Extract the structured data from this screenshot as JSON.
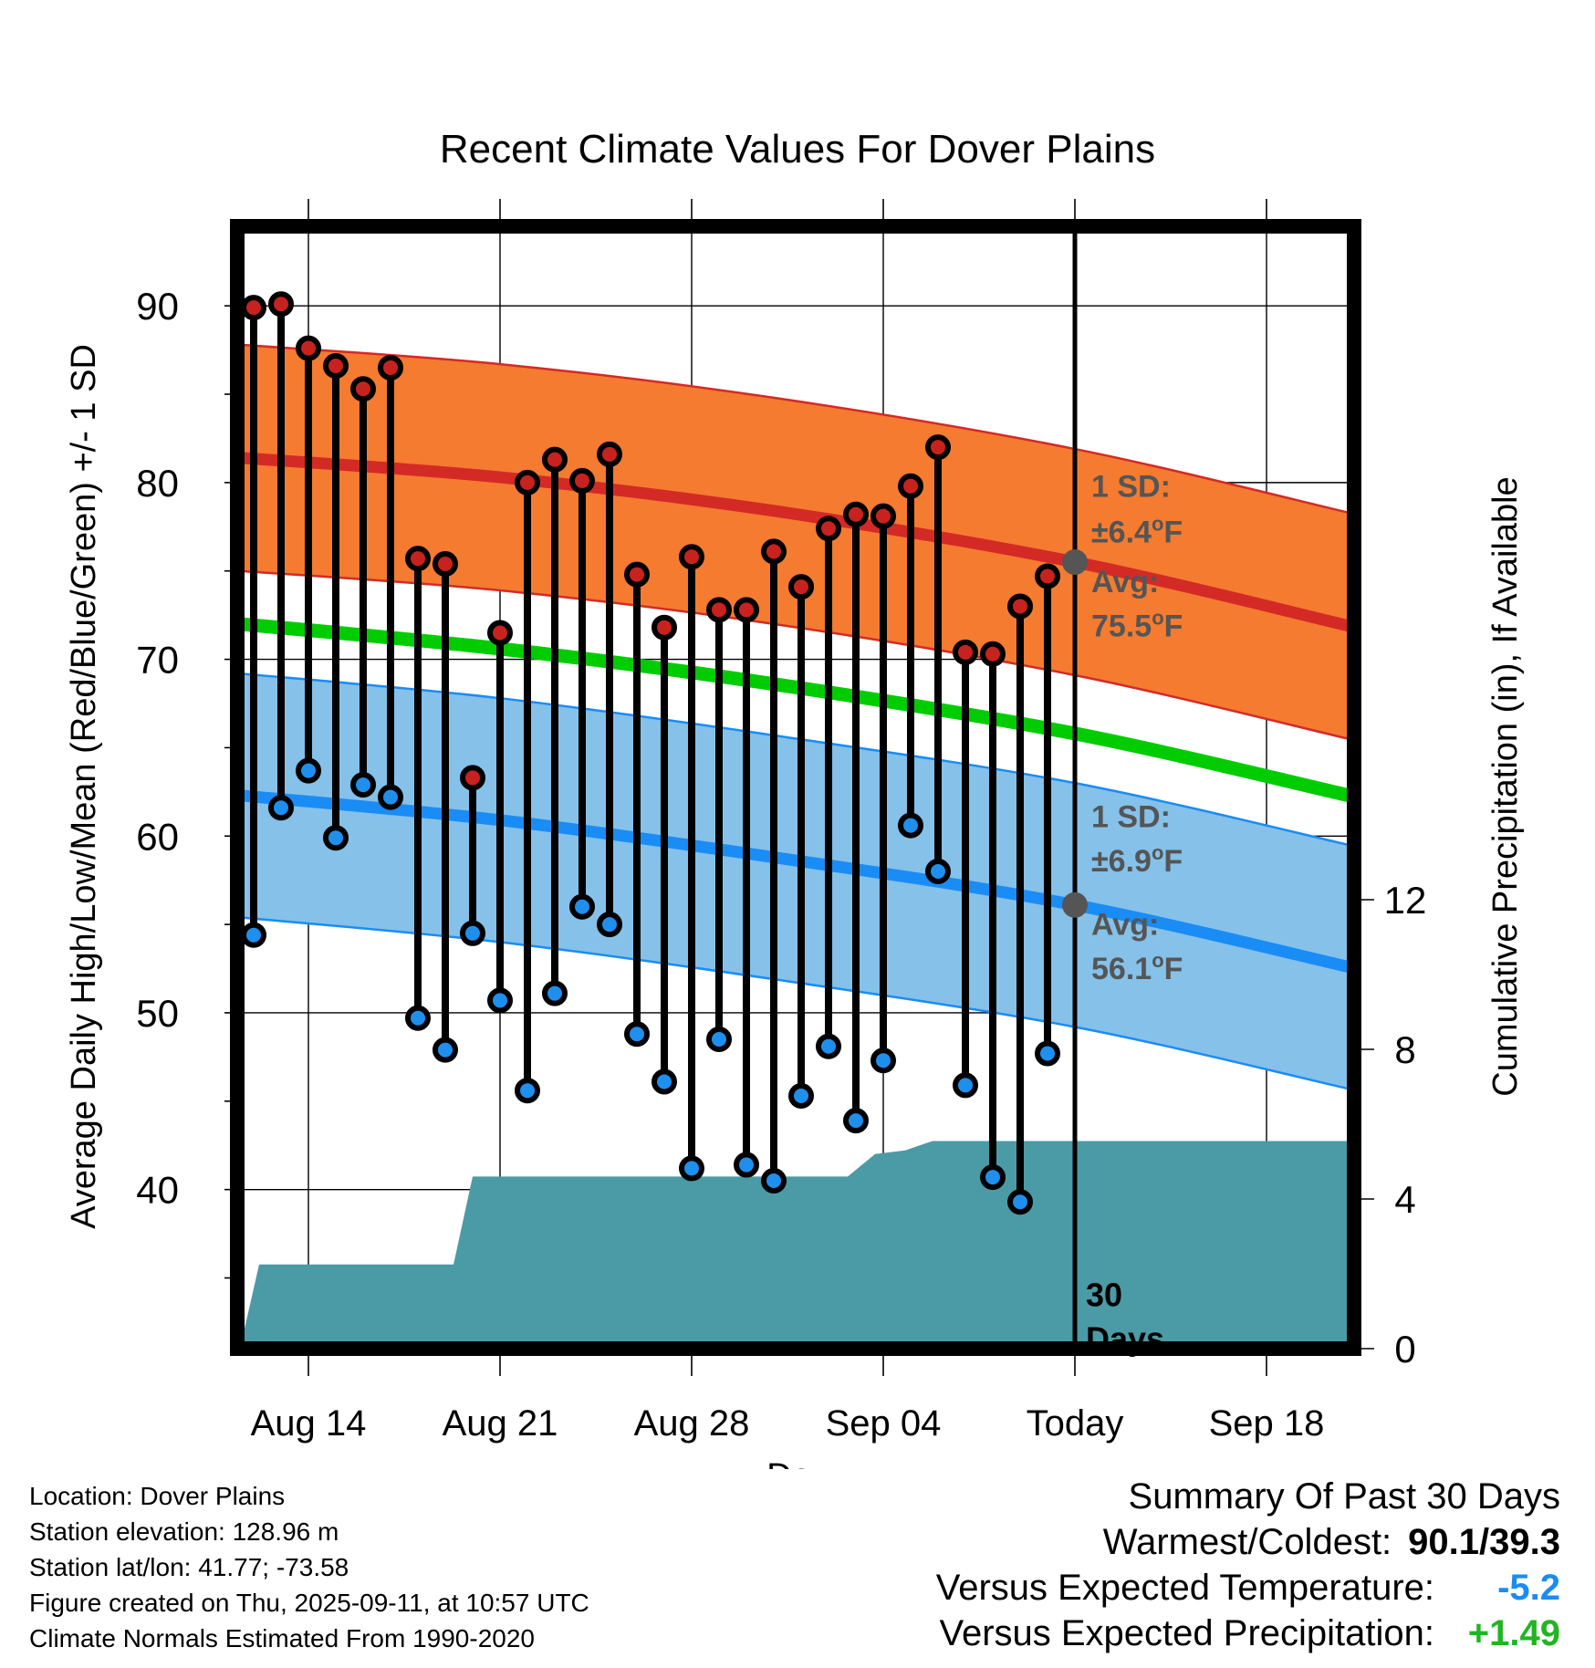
{
  "chart_data": {
    "type": "line",
    "title": "Recent Climate Values For Dover Plains",
    "xlabel": "Day",
    "ylabel": "Average Daily High/Low/Mean (Red/Blue/Green) +/- 1 SD",
    "y2label": "Cumulative Precipitation (in), If Available",
    "x_start": "Aug 11",
    "today": "Sep 11",
    "x_ticks": [
      {
        "day": 3,
        "label": "Aug 14"
      },
      {
        "day": 10,
        "label": "Aug 21"
      },
      {
        "day": 17,
        "label": "Aug 28"
      },
      {
        "day": 24,
        "label": "Sep 04"
      },
      {
        "day": 31,
        "label": "Today"
      },
      {
        "day": 38,
        "label": "Sep 18"
      }
    ],
    "xlim": [
      0.4,
      41.2
    ],
    "ylim": [
      31,
      94.5
    ],
    "y_ticks": [
      40,
      50,
      60,
      70,
      80,
      90
    ],
    "y2lim": [
      0,
      30
    ],
    "y2_ticks": [
      0,
      4,
      8,
      12
    ],
    "grid": true,
    "daily": [
      {
        "day": 1,
        "high": 89.9,
        "low": 54.4
      },
      {
        "day": 2,
        "high": 90.1,
        "low": 61.6
      },
      {
        "day": 3,
        "high": 87.6,
        "low": 63.7
      },
      {
        "day": 4,
        "high": 86.6,
        "low": 59.9
      },
      {
        "day": 5,
        "high": 85.3,
        "low": 62.9
      },
      {
        "day": 6,
        "high": 86.5,
        "low": 62.2
      },
      {
        "day": 7,
        "high": 75.7,
        "low": 49.7
      },
      {
        "day": 8,
        "high": 75.4,
        "low": 47.9
      },
      {
        "day": 9,
        "high": 63.3,
        "low": 54.5
      },
      {
        "day": 10,
        "high": 71.5,
        "low": 50.7
      },
      {
        "day": 11,
        "high": 80.0,
        "low": 45.6
      },
      {
        "day": 12,
        "high": 81.3,
        "low": 51.1
      },
      {
        "day": 13,
        "high": 80.1,
        "low": 56.0
      },
      {
        "day": 14,
        "high": 81.6,
        "low": 55.0
      },
      {
        "day": 15,
        "high": 74.8,
        "low": 48.8
      },
      {
        "day": 16,
        "high": 71.8,
        "low": 46.1
      },
      {
        "day": 17,
        "high": 75.8,
        "low": 41.2
      },
      {
        "day": 18,
        "high": 72.8,
        "low": 48.5
      },
      {
        "day": 19,
        "high": 72.8,
        "low": 41.4
      },
      {
        "day": 20,
        "high": 76.1,
        "low": 40.5
      },
      {
        "day": 21,
        "high": 74.1,
        "low": 45.3
      },
      {
        "day": 22,
        "high": 77.4,
        "low": 48.1
      },
      {
        "day": 23,
        "high": 78.2,
        "low": 43.9
      },
      {
        "day": 24,
        "high": 78.1,
        "low": 47.3
      },
      {
        "day": 25,
        "high": 79.8,
        "low": 60.6
      },
      {
        "day": 26,
        "high": 82.0,
        "low": 58.0
      },
      {
        "day": 27,
        "high": 70.4,
        "low": 45.9
      },
      {
        "day": 28,
        "high": 70.3,
        "low": 40.7
      },
      {
        "day": 29,
        "high": 73.0,
        "low": 39.3
      },
      {
        "day": 30,
        "high": 74.7,
        "low": 47.7
      }
    ],
    "normals": {
      "days": [
        0.5,
        10,
        20,
        31,
        41
      ],
      "avg_high": [
        81.4,
        80.3,
        78.4,
        75.5,
        71.9
      ],
      "avg_low": [
        62.3,
        60.9,
        58.8,
        56.1,
        52.6
      ],
      "avg_mean": [
        72.0,
        70.6,
        68.6,
        65.8,
        62.3
      ],
      "high_sd": 6.4,
      "low_sd": 6.9
    },
    "precip_cumulative": {
      "days": [
        0.5,
        1.2,
        8.3,
        9.0,
        22.7,
        23.7,
        24.8,
        25.8,
        41.0
      ],
      "values": [
        0,
        0,
        0,
        0,
        0,
        0,
        0,
        0,
        0
      ]
    },
    "precip_steps": [
      {
        "day": 0.5,
        "value": 0.0
      },
      {
        "day": 1.2,
        "value": 2.25
      },
      {
        "day": 8.3,
        "value": 2.25
      },
      {
        "day": 9.0,
        "value": 4.6
      },
      {
        "day": 22.7,
        "value": 4.6
      },
      {
        "day": 23.7,
        "value": 5.2
      },
      {
        "day": 24.8,
        "value": 5.3
      },
      {
        "day": 25.8,
        "value": 5.55
      },
      {
        "day": 41.0,
        "value": 5.55
      }
    ],
    "annotations": {
      "high_sd_label_1": "1 SD:",
      "high_sd_label_2": "±6.4",
      "high_avg_label_1": "Avg:",
      "high_avg_label_2": "75.5",
      "low_sd_label_1": "1 SD:",
      "low_sd_label_2": "±6.9",
      "low_avg_label_1": "Avg:",
      "low_avg_label_2": "56.1",
      "degree": "o",
      "unit": "F",
      "days_label_1": "30",
      "days_label_2": "Days"
    },
    "colors": {
      "high_band": "#f47b30",
      "high_line": "#d42a26",
      "high_marker": "#c8221f",
      "low_band": "#85c1e9",
      "low_line": "#1a8cf5",
      "low_marker": "#1f8fee",
      "mean_line": "#00cc00",
      "precip": "#4a9ba6",
      "annotation": "#555555"
    }
  },
  "info": {
    "location": "Location: Dover Plains",
    "elevation": "Station elevation: 128.96 m",
    "latlon": "Station lat/lon: 41.77; -73.58",
    "created": "Figure created on Thu, 2025-09-11, at 10:57 UTC",
    "normals": "Climate Normals Estimated From 1990-2020"
  },
  "summary": {
    "title": "Summary Of Past 30 Days",
    "warm_cold_label": "Warmest/Coldest:",
    "warm_cold_value": "90.1/39.3",
    "temp_label": "Versus Expected Temperature:",
    "temp_value": "-5.2",
    "temp_color": "#1a8cf5",
    "precip_label": "Versus Expected Precipitation:",
    "precip_value": "+1.49",
    "precip_color": "#22b522"
  }
}
